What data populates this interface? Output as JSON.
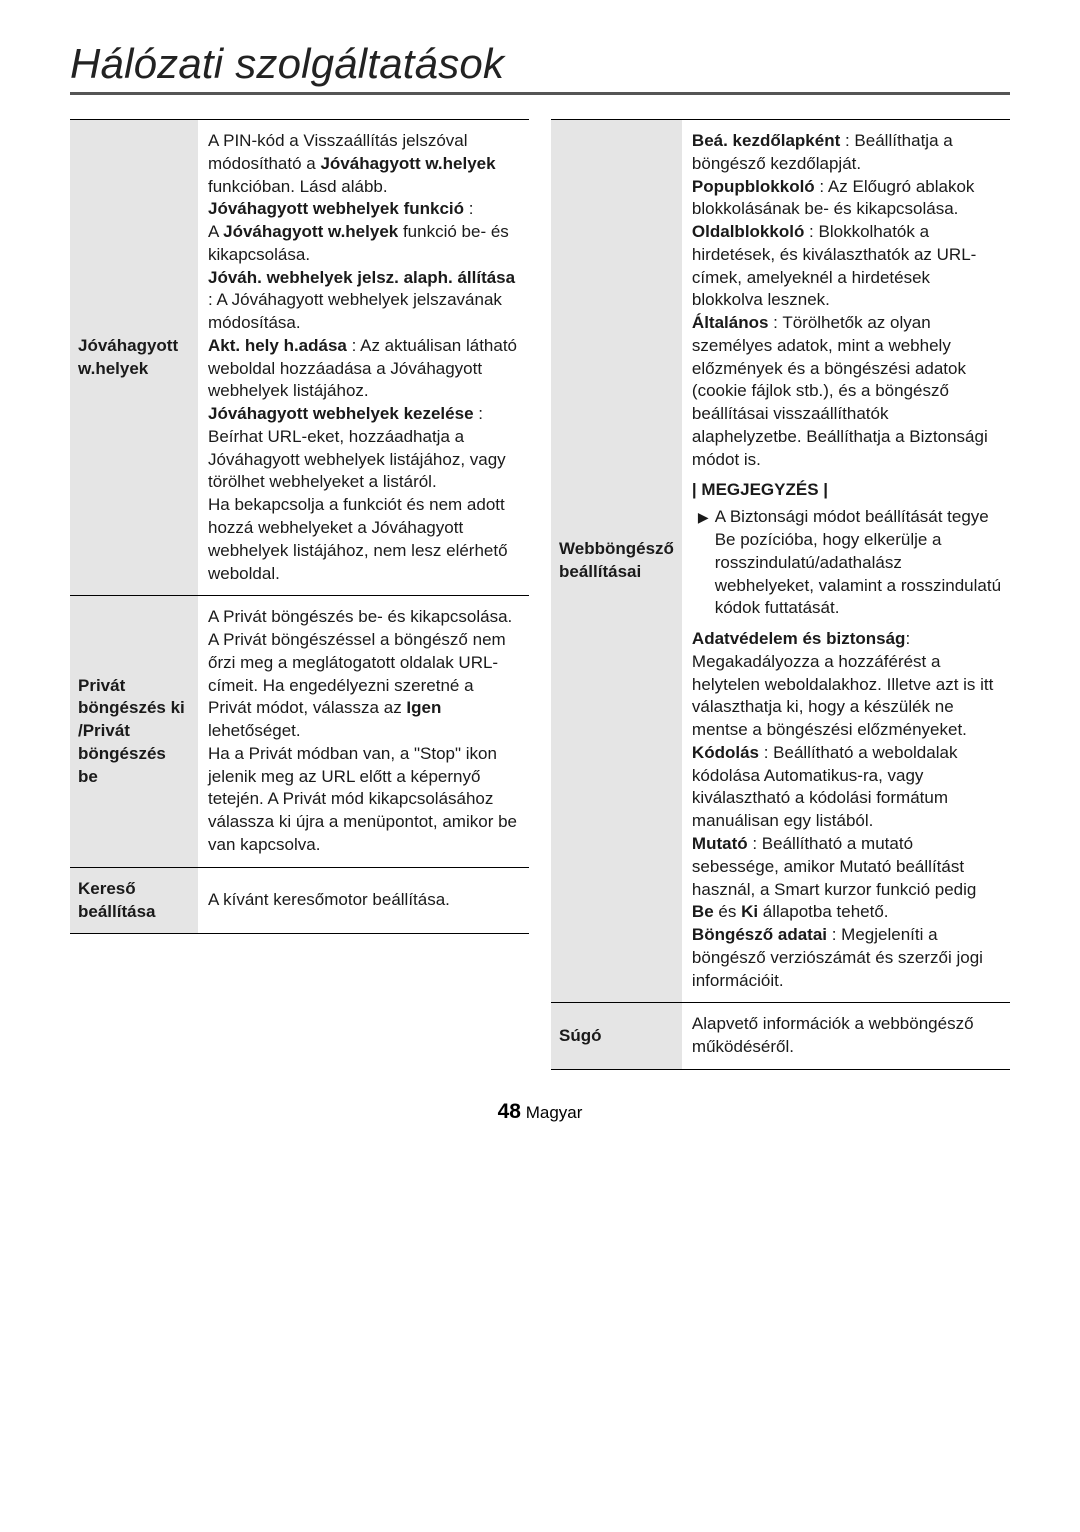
{
  "page_title": "Hálózati szolgáltatások",
  "footer": {
    "page_number": "48",
    "lang": "Magyar"
  },
  "left": {
    "rows": [
      {
        "label": "Jóváhagyott w.helyek",
        "content_html": "A PIN-kód a Visszaállítás jelszóval módosítható a <span class='b'>Jóváhagyott w.helyek</span> funkcióban. Lásd alább.<br><span class='b'>Jóváhagyott webhelyek funkció</span> :<br>A <span class='b'>Jóváhagyott w.helyek</span> funkció be- és kikapcsolása.<br><span class='b'>Jóváh. webhelyek jelsz. alaph. állítása</span> : A Jóváhagyott webhelyek jelszavának módosítása.<br><span class='b'>Akt. hely h.adása</span> : Az aktuálisan látható weboldal hozzáadása a Jóváhagyott webhelyek listájához.<br><span class='b'>Jóváhagyott webhelyek kezelése</span> : Beírhat URL-eket, hozzáadhatja a Jóváhagyott webhelyek listájához, vagy törölhet webhelyeket a listáról.<br>Ha bekapcsolja a funkciót és nem adott hozzá webhelyeket a Jóváhagyott webhelyek listájához, nem lesz elérhető weboldal."
      },
      {
        "label": "Privát böngészés ki /Privát böngészés be",
        "content_html": "A Privát böngészés be- és kikapcsolása. A Privát böngészéssel a böngésző nem őrzi meg a meglátogatott oldalak URL-címeit. Ha engedélyezni szeretné a Privát módot, válassza az <span class='b'>Igen</span> lehetőséget.<br>Ha a Privát módban van, a \"Stop\" ikon jelenik meg az URL előtt a képernyő tetején. A Privát mód kikapcsolásához válassza ki újra a menüpontot, amikor be van kapcsolva."
      },
      {
        "label": "Kereső beállítása",
        "content_html": "A kívánt keresőmotor beállítása."
      }
    ]
  },
  "right": {
    "rows": [
      {
        "label": "Webböngésző beállításai",
        "content_html": "<span class='b'>Beá. kezdőlapként</span> : Beállíthatja a böngésző kezdőlapját.<br><span class='b'>Popupblokkoló</span> : Az Előugró ablakok blokkolásának be- és kikapcsolása.<br><span class='b'>Oldalblokkoló</span> : Blokkolhatók a hirdetések, és kiválaszthatók az URL-címek, amelyeknél a hirdetések blokkolva lesznek.<br><span class='b'>Általános</span> : Törölhetők az olyan személyes adatok, mint a webhely előzmények és a böngészési adatok (cookie fájlok stb.), és a böngésző beállításai visszaállíthatók alaphelyzetbe. Beállíthatja a Biztonsági módot is.<div class='note-head'>| MEGJEGYZÉS |</div><div class='note-item'><span class='tri'>▶</span><span>A Biztonsági módot beállítását tegye Be pozícióba, hogy elkerülje a rosszindulatú/adathalász webhelyeket, valamint a rosszindulatú kódok futtatását.</span></div><span class='b'>Adatvédelem és biztonság</span>: Megakadályozza a hozzáférést a helytelen weboldalakhoz. Illetve azt is itt választhatja ki, hogy a készülék ne mentse a böngészési előzményeket.<br><span class='b'>Kódolás</span> : Beállítható a weboldalak kódolása Automatikus-ra, vagy kiválasztható a kódolási formátum manuálisan egy listából.<br><span class='b'>Mutató</span> : Beállítható a mutató sebessége, amikor Mutató beállítást használ, a Smart kurzor funkció pedig <span class='b'>Be</span> és <span class='b'>Ki</span> állapotba tehető.<br><span class='b'>Böngésző adatai</span> : Megjeleníti a böngésző verziószámát és szerzői jogi információit."
      },
      {
        "label": "Súgó",
        "content_html": "Alapvető információk a webböngésző működéséről."
      }
    ]
  }
}
